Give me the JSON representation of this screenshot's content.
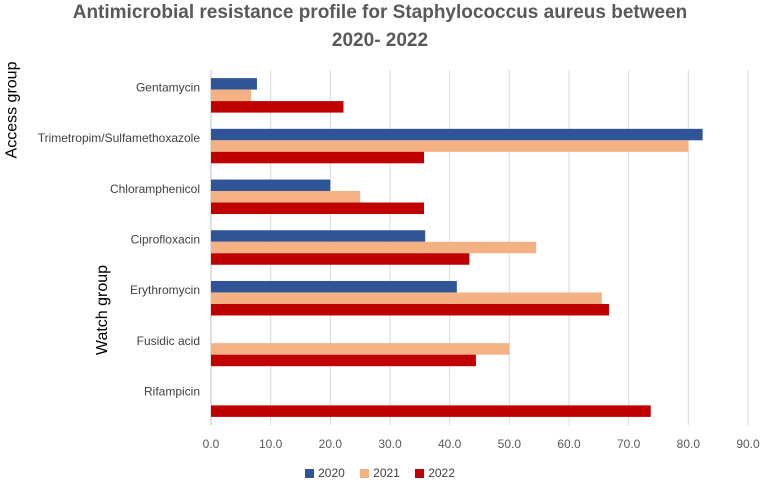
{
  "chart_data": {
    "type": "bar",
    "orientation": "horizontal",
    "title_lines": [
      "Antimicrobial resistance profile for Staphylococcus aureus between",
      "2020- 2022"
    ],
    "categories": [
      "Gentamycin",
      "Trimetropim/Sulfamethoxazole",
      "Chloramphenicol",
      "Ciprofloxacin",
      "Erythromycin",
      "Fusidic acid",
      "Rifampicin"
    ],
    "series": [
      {
        "name": "2020",
        "color": "#2F5597",
        "values": [
          7.7,
          82.4,
          20.0,
          35.9,
          41.2,
          null,
          null
        ]
      },
      {
        "name": "2021",
        "color": "#F4B183",
        "values": [
          6.7,
          80.0,
          25.0,
          54.5,
          65.5,
          50.0,
          null
        ]
      },
      {
        "name": "2022",
        "color": "#C00000",
        "values": [
          22.2,
          35.7,
          35.7,
          43.3,
          66.7,
          44.4,
          73.7
        ]
      }
    ],
    "xlim": [
      0,
      90
    ],
    "xticks": [
      "0.0",
      "10.0",
      "20.0",
      "30.0",
      "40.0",
      "50.0",
      "60.0",
      "70.0",
      "80.0",
      "90.0"
    ],
    "group_labels": [
      {
        "label": "Access group",
        "categories": [
          "Gentamycin",
          "Trimetropim/Sulfamethoxazole"
        ]
      },
      {
        "label": "Watch  group",
        "categories": [
          "Chloramphenicol",
          "Ciprofloxacin",
          "Erythromycin",
          "Fusidic acid",
          "Rifampicin"
        ]
      }
    ],
    "grid": "vertical",
    "legend_position": "bottom"
  }
}
